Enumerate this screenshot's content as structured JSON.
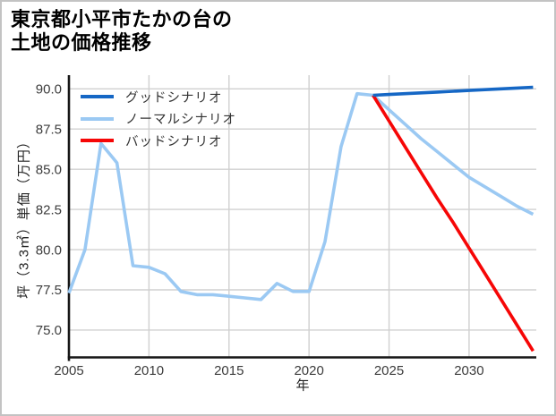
{
  "title": {
    "line1": "東京都小平市たかの台の",
    "line2": "土地の価格推移"
  },
  "legend": {
    "items": [
      {
        "label": "グッドシナリオ",
        "color": "#1567c5"
      },
      {
        "label": "ノーマルシナリオ",
        "color": "#9bc9f3"
      },
      {
        "label": "バッドシナリオ",
        "color": "#f60606"
      }
    ]
  },
  "colors": {
    "grid": "#d0d0d0",
    "spine": "#161616",
    "tick_text": "#3c3c3c",
    "good": "#1567c5",
    "normal": "#9bc9f3",
    "bad": "#f60606"
  },
  "chart_data": {
    "type": "line",
    "title": "東京都小平市たかの台の土地の価格推移",
    "xlabel": "年",
    "ylabel": "坪（3.3㎡）単価（万円）",
    "x": [
      2005,
      2006,
      2007,
      2008,
      2009,
      2010,
      2011,
      2012,
      2013,
      2014,
      2015,
      2016,
      2017,
      2018,
      2019,
      2020,
      2021,
      2022,
      2023,
      2024,
      2025,
      2026,
      2027,
      2028,
      2029,
      2030,
      2031,
      2032,
      2033,
      2034
    ],
    "series": [
      {
        "name": "グッドシナリオ",
        "color": "#1567c5",
        "values": [
          null,
          null,
          null,
          null,
          null,
          null,
          null,
          null,
          null,
          null,
          null,
          null,
          null,
          null,
          null,
          null,
          null,
          null,
          null,
          89.6,
          89.65,
          89.7,
          89.75,
          89.8,
          89.85,
          89.9,
          89.95,
          90.0,
          90.05,
          90.1
        ]
      },
      {
        "name": "ノーマルシナリオ",
        "color": "#9bc9f3",
        "values": [
          77.3,
          80.0,
          86.6,
          85.4,
          79.0,
          78.9,
          78.5,
          77.4,
          77.2,
          77.2,
          77.1,
          77.0,
          76.9,
          77.9,
          77.4,
          77.4,
          80.5,
          86.4,
          89.7,
          89.6,
          88.7,
          87.8,
          86.9,
          86.1,
          85.3,
          84.5,
          83.9,
          83.3,
          82.7,
          82.2
        ]
      },
      {
        "name": "バッドシナリオ",
        "color": "#f60606",
        "values": [
          null,
          null,
          null,
          null,
          null,
          null,
          null,
          null,
          null,
          null,
          null,
          null,
          null,
          null,
          null,
          null,
          null,
          null,
          null,
          89.6,
          88.0,
          86.4,
          84.8,
          83.2,
          81.7,
          80.1,
          78.5,
          76.9,
          75.3,
          73.7
        ]
      }
    ],
    "xticks": [
      2005,
      2010,
      2015,
      2020,
      2025,
      2030
    ],
    "yticks": [
      90.0,
      87.5,
      85.0,
      82.5,
      80.0,
      77.5,
      75.0
    ],
    "xlim": [
      2005,
      2034.2
    ],
    "ylim": [
      73.3,
      90.85
    ],
    "grid": true,
    "legend_position": "upper-left"
  }
}
